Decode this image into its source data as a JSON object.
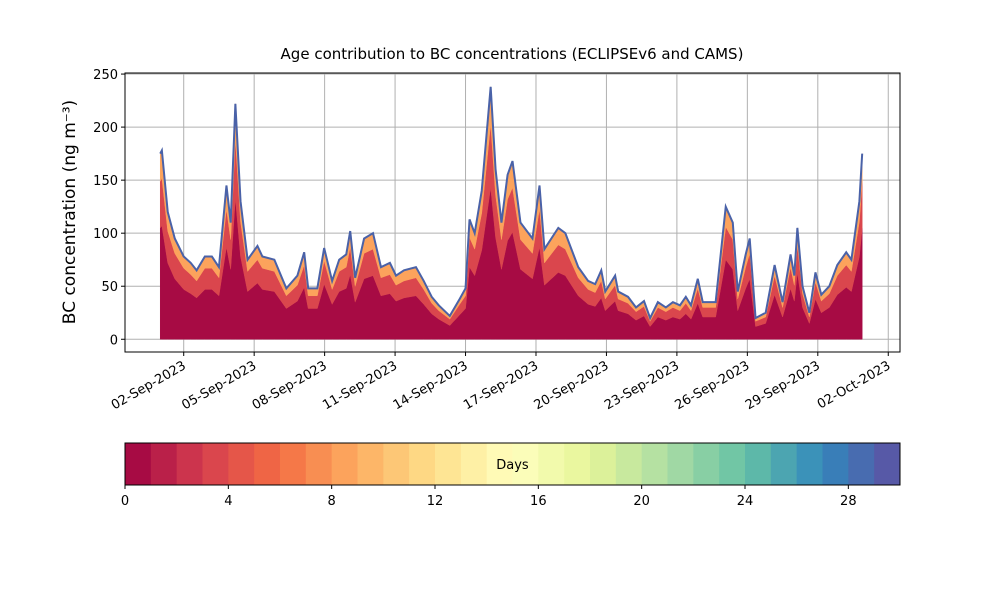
{
  "chart_data": {
    "type": "stacked-area",
    "title": "Age contribution to BC concentrations (ECLIPSEv6 and CAMS)",
    "y_label": "BC concentration (ng m⁻³)",
    "x": [
      1.0,
      1.07,
      1.32,
      1.62,
      2.0,
      2.3,
      2.55,
      2.9,
      3.2,
      3.5,
      3.82,
      4.0,
      4.2,
      4.42,
      4.72,
      5.14,
      5.35,
      5.86,
      6.37,
      6.84,
      7.13,
      7.3,
      7.69,
      7.98,
      8.32,
      8.62,
      8.92,
      9.09,
      9.3,
      9.68,
      10.06,
      10.4,
      10.78,
      11.04,
      11.38,
      11.89,
      12.22,
      12.56,
      12.86,
      13.33,
      13.75,
      14.0,
      14.17,
      14.39,
      14.69,
      15.07,
      15.28,
      15.53,
      15.79,
      16.0,
      16.34,
      16.85,
      17.15,
      17.36,
      17.95,
      18.25,
      18.8,
      19.22,
      19.52,
      19.78,
      19.95,
      20.37,
      20.5,
      20.92,
      21.26,
      21.6,
      21.86,
      22.19,
      22.53,
      22.83,
      23.13,
      23.38,
      23.6,
      23.89,
      24.1,
      24.65,
      25.08,
      25.38,
      25.59,
      25.93,
      26.1,
      26.35,
      26.78,
      27.16,
      27.5,
      27.84,
      28.0,
      28.13,
      28.35,
      28.64,
      28.9,
      29.15,
      29.49,
      29.83,
      30.21,
      30.43,
      30.77,
      30.89
    ],
    "series": [
      {
        "color": "#a70b44",
        "values": [
          105,
          107,
          72,
          57,
          47,
          43,
          39,
          47,
          47,
          41,
          87,
          66,
          133,
          78,
          45,
          53,
          47,
          45,
          29,
          36,
          49,
          29,
          29,
          52,
          33,
          45,
          48,
          61,
          35,
          57,
          60,
          41,
          43,
          36,
          39,
          41,
          33,
          24,
          19,
          13,
          23,
          29,
          68,
          60,
          84,
          143,
          96,
          66,
          93,
          101,
          66,
          57,
          87,
          51,
          63,
          60,
          41,
          33,
          31,
          39,
          27,
          36,
          27,
          24,
          18,
          22,
          12,
          21,
          18,
          21,
          19,
          24,
          19,
          34,
          21,
          21,
          75,
          66,
          27,
          48,
          57,
          12,
          15,
          42,
          21,
          48,
          36,
          63,
          30,
          15,
          38,
          25,
          30,
          42,
          49,
          45,
          78,
          105
        ]
      },
      {
        "color": "#da464d",
        "values": [
          44,
          45,
          30,
          24,
          20,
          18,
          16,
          20,
          20,
          17,
          36,
          28,
          56,
          33,
          19,
          22,
          20,
          19,
          12,
          15,
          21,
          12,
          12,
          22,
          14,
          19,
          20,
          26,
          15,
          24,
          25,
          17,
          18,
          15,
          16,
          17,
          14,
          10,
          8,
          6,
          10,
          12,
          28,
          25,
          35,
          60,
          40,
          28,
          39,
          42,
          28,
          24,
          36,
          21,
          26,
          25,
          17,
          14,
          13,
          16,
          11,
          15,
          11,
          10,
          8,
          9,
          5,
          9,
          8,
          9,
          8,
          10,
          8,
          14,
          9,
          9,
          31,
          28,
          11,
          20,
          24,
          5,
          6,
          18,
          9,
          20,
          15,
          26,
          13,
          6,
          16,
          11,
          13,
          18,
          21,
          19,
          33,
          44
        ]
      },
      {
        "color": "#fca35c",
        "values": [
          26,
          26,
          18,
          14,
          11,
          11,
          10,
          11,
          11,
          10,
          22,
          16,
          33,
          19,
          11,
          13,
          11,
          11,
          7,
          9,
          12,
          7,
          7,
          12,
          8,
          11,
          12,
          15,
          8,
          14,
          15,
          10,
          11,
          9,
          10,
          10,
          8,
          6,
          5,
          3,
          5,
          7,
          17,
          15,
          21,
          35,
          24,
          16,
          23,
          25,
          16,
          14,
          22,
          13,
          16,
          15,
          10,
          8,
          8,
          10,
          7,
          9,
          7,
          6,
          4,
          5,
          3,
          5,
          4,
          5,
          5,
          6,
          5,
          9,
          5,
          5,
          19,
          16,
          7,
          12,
          14,
          3,
          4,
          10,
          5,
          12,
          9,
          16,
          7,
          4,
          9,
          6,
          7,
          10,
          12,
          11,
          19,
          26
        ]
      }
    ],
    "outline_color": "#4a62a8",
    "xlim": [
      -0.5,
      32.5
    ],
    "xticks": [
      {
        "value": 2,
        "label": "02-Sep-2023"
      },
      {
        "value": 5,
        "label": "05-Sep-2023"
      },
      {
        "value": 8,
        "label": "08-Sep-2023"
      },
      {
        "value": 11,
        "label": "11-Sep-2023"
      },
      {
        "value": 14,
        "label": "14-Sep-2023"
      },
      {
        "value": 17,
        "label": "17-Sep-2023"
      },
      {
        "value": 20,
        "label": "20-Sep-2023"
      },
      {
        "value": 23,
        "label": "23-Sep-2023"
      },
      {
        "value": 26,
        "label": "26-Sep-2023"
      },
      {
        "value": 29,
        "label": "29-Sep-2023"
      },
      {
        "value": 32,
        "label": "02-Oct-2023"
      }
    ],
    "ylim": [
      -12,
      251
    ],
    "yticks": [
      0,
      50,
      100,
      150,
      200,
      250
    ],
    "grid": true,
    "colorbar": {
      "label": "Days",
      "lim": [
        0,
        30
      ],
      "ticks": [
        0,
        4,
        8,
        12,
        16,
        20,
        24,
        28
      ],
      "colors": [
        "#a70b44",
        "#ba2049",
        "#cc344d",
        "#da464d",
        "#e55649",
        "#ef6545",
        "#f57848",
        "#f88e52",
        "#fca35c",
        "#fdb668",
        "#fdc776",
        "#fed884",
        "#fee594",
        "#fef0a5",
        "#fffab6",
        "#fbfdb9",
        "#f2faac",
        "#eaf79f",
        "#dcf19a",
        "#c8e99e",
        "#b5e1a2",
        "#a0d8a4",
        "#88cfa4",
        "#71c6a5",
        "#5db8a9",
        "#4ca5b1",
        "#3b92b9",
        "#397eb8",
        "#486cb0",
        "#5759a7"
      ]
    }
  }
}
